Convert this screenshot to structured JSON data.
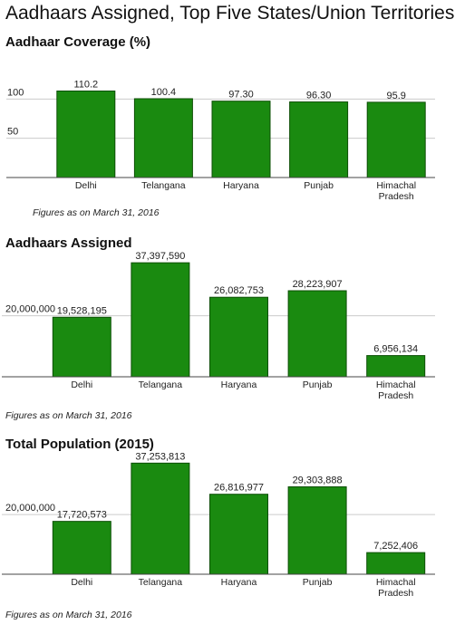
{
  "title": "Aadhaars Assigned, Top Five States/Union Territories",
  "colors": {
    "bar": "#1a8a10",
    "bar_stroke": "#0d4f06",
    "grid": "#cccccc",
    "axis": "#444444"
  },
  "chart_data": [
    {
      "type": "bar",
      "title": "Aadhaar Coverage (%)",
      "note": "Figures as on March 31, 2016",
      "categories": [
        "Delhi",
        "Telangana",
        "Haryana",
        "Punjab",
        "Himachal Pradesh"
      ],
      "category_lines": [
        [
          "Delhi"
        ],
        [
          "Telangana"
        ],
        [
          "Haryana"
        ],
        [
          "Punjab"
        ],
        [
          "Himachal",
          "Pradesh"
        ]
      ],
      "values": [
        110.2,
        100.4,
        97.3,
        96.3,
        95.9
      ],
      "data_labels": [
        "110.2",
        "100.4",
        "97.30",
        "96.30",
        "95.9"
      ],
      "yticks": [
        50,
        100
      ],
      "ytick_labels": [
        "50",
        "100"
      ],
      "ylim": [
        0,
        120
      ],
      "grid": true
    },
    {
      "type": "bar",
      "title": "Aadhaars Assigned",
      "note": "Figures as on March 31, 2016",
      "categories": [
        "Delhi",
        "Telangana",
        "Haryana",
        "Punjab",
        "Himachal Pradesh"
      ],
      "category_lines": [
        [
          "Delhi"
        ],
        [
          "Telangana"
        ],
        [
          "Haryana"
        ],
        [
          "Punjab"
        ],
        [
          "Himachal",
          "Pradesh"
        ]
      ],
      "values": [
        19528195,
        37397590,
        26082753,
        28223907,
        6956134
      ],
      "data_labels": [
        "19,528,195",
        "37,397,590",
        "26,082,753",
        "28,223,907",
        "6,956,134"
      ],
      "yticks": [
        20000000
      ],
      "ytick_labels": [
        "20,000,000"
      ],
      "ylim": [
        0,
        41000000
      ],
      "grid": true
    },
    {
      "type": "bar",
      "title": "Total Population (2015)",
      "note": "Figures as on March 31, 2016",
      "categories": [
        "Delhi",
        "Telangana",
        "Haryana",
        "Punjab",
        "Himachal Pradesh"
      ],
      "category_lines": [
        [
          "Delhi"
        ],
        [
          "Telangana"
        ],
        [
          "Haryana"
        ],
        [
          "Punjab"
        ],
        [
          "Himachal",
          "Pradesh"
        ]
      ],
      "values": [
        17720573,
        37253813,
        26816977,
        29303888,
        7252406
      ],
      "data_labels": [
        "17,720,573",
        "37,253,813",
        "26,816,977",
        "29,303,888",
        "7,252,406"
      ],
      "yticks": [
        20000000
      ],
      "ytick_labels": [
        "20,000,000"
      ],
      "ylim": [
        0,
        41000000
      ],
      "grid": true
    }
  ]
}
